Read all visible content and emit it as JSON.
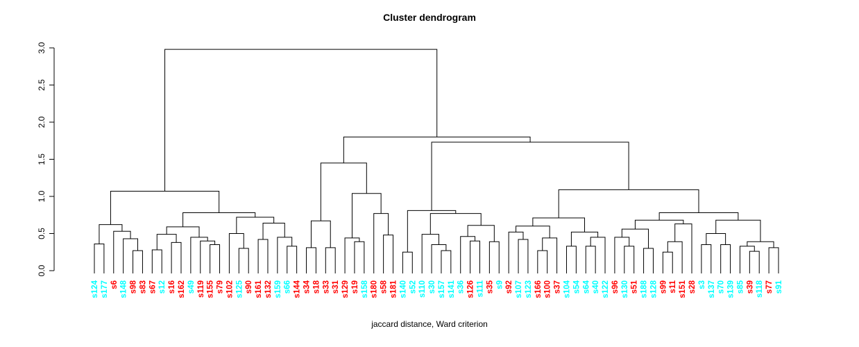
{
  "title": "Cluster dendrogram",
  "caption": "jaccard distance, Ward criterion",
  "chart_data": {
    "type": "dendrogram",
    "title": "Cluster dendrogram",
    "xlabel": "jaccard distance, Ward criterion",
    "ylabel": "",
    "ylim": [
      0.0,
      3.0
    ],
    "yticks": [
      "0.0",
      "0.5",
      "1.0",
      "1.5",
      "2.0",
      "2.5",
      "3.0"
    ],
    "grid": false,
    "line_color": "#000000",
    "label_colors": {
      "cyan": "#00ffff",
      "red": "#ff0000"
    },
    "leaves": [
      {
        "label": "s124",
        "color": "cyan"
      },
      {
        "label": "s177",
        "color": "cyan"
      },
      {
        "label": "s6",
        "color": "red"
      },
      {
        "label": "s148",
        "color": "cyan"
      },
      {
        "label": "s98",
        "color": "red"
      },
      {
        "label": "s83",
        "color": "red"
      },
      {
        "label": "s67",
        "color": "red"
      },
      {
        "label": "s12",
        "color": "cyan"
      },
      {
        "label": "s16",
        "color": "red"
      },
      {
        "label": "s162",
        "color": "red"
      },
      {
        "label": "s49",
        "color": "cyan"
      },
      {
        "label": "s119",
        "color": "red"
      },
      {
        "label": "s155",
        "color": "red"
      },
      {
        "label": "s79",
        "color": "red"
      },
      {
        "label": "s102",
        "color": "red"
      },
      {
        "label": "s125",
        "color": "cyan"
      },
      {
        "label": "s90",
        "color": "red"
      },
      {
        "label": "s161",
        "color": "red"
      },
      {
        "label": "s132",
        "color": "red"
      },
      {
        "label": "s159",
        "color": "cyan"
      },
      {
        "label": "s66",
        "color": "cyan"
      },
      {
        "label": "s144",
        "color": "red"
      },
      {
        "label": "s34",
        "color": "red"
      },
      {
        "label": "s18",
        "color": "red"
      },
      {
        "label": "s33",
        "color": "red"
      },
      {
        "label": "s31",
        "color": "red"
      },
      {
        "label": "s129",
        "color": "red"
      },
      {
        "label": "s19",
        "color": "red"
      },
      {
        "label": "s158",
        "color": "cyan"
      },
      {
        "label": "s180",
        "color": "red"
      },
      {
        "label": "s58",
        "color": "red"
      },
      {
        "label": "s181",
        "color": "red"
      },
      {
        "label": "s140",
        "color": "cyan"
      },
      {
        "label": "s52",
        "color": "cyan"
      },
      {
        "label": "s110",
        "color": "cyan"
      },
      {
        "label": "s30",
        "color": "cyan"
      },
      {
        "label": "s157",
        "color": "cyan"
      },
      {
        "label": "s141",
        "color": "cyan"
      },
      {
        "label": "s36",
        "color": "cyan"
      },
      {
        "label": "s126",
        "color": "red"
      },
      {
        "label": "s111",
        "color": "cyan"
      },
      {
        "label": "s35",
        "color": "red"
      },
      {
        "label": "s9",
        "color": "cyan"
      },
      {
        "label": "s92",
        "color": "red"
      },
      {
        "label": "s107",
        "color": "cyan"
      },
      {
        "label": "s123",
        "color": "cyan"
      },
      {
        "label": "s166",
        "color": "red"
      },
      {
        "label": "s100",
        "color": "red"
      },
      {
        "label": "s37",
        "color": "red"
      },
      {
        "label": "s104",
        "color": "cyan"
      },
      {
        "label": "s54",
        "color": "cyan"
      },
      {
        "label": "s64",
        "color": "cyan"
      },
      {
        "label": "s40",
        "color": "cyan"
      },
      {
        "label": "s122",
        "color": "cyan"
      },
      {
        "label": "s96",
        "color": "red"
      },
      {
        "label": "s130",
        "color": "cyan"
      },
      {
        "label": "s51",
        "color": "red"
      },
      {
        "label": "s188",
        "color": "cyan"
      },
      {
        "label": "s128",
        "color": "cyan"
      },
      {
        "label": "s99",
        "color": "red"
      },
      {
        "label": "s11",
        "color": "red"
      },
      {
        "label": "s151",
        "color": "red"
      },
      {
        "label": "s28",
        "color": "red"
      },
      {
        "label": "s3",
        "color": "cyan"
      },
      {
        "label": "s137",
        "color": "cyan"
      },
      {
        "label": "s70",
        "color": "cyan"
      },
      {
        "label": "s139",
        "color": "cyan"
      },
      {
        "label": "s85",
        "color": "cyan"
      },
      {
        "label": "s39",
        "color": "red"
      },
      {
        "label": "s118",
        "color": "cyan"
      },
      {
        "label": "s77",
        "color": "red"
      },
      {
        "label": "s91",
        "color": "cyan"
      }
    ],
    "tree": [
      2.98,
      [
        1.07,
        [
          0.62,
          [
            0.36,
            "s124",
            "s177"
          ],
          [
            0.53,
            "s6",
            [
              0.43,
              "s148",
              [
                0.27,
                "s98",
                "s83"
              ]
            ]
          ]
        ],
        [
          0.78,
          [
            0.59,
            [
              0.49,
              [
                0.28,
                "s67",
                "s12"
              ],
              [
                0.38,
                "s16",
                "s162"
              ]
            ],
            [
              0.45,
              "s49",
              [
                0.4,
                "s119",
                [
                  0.35,
                  "s155",
                  "s79"
                ]
              ]
            ]
          ],
          [
            0.72,
            [
              0.5,
              "s102",
              [
                0.3,
                "s125",
                "s90"
              ]
            ],
            [
              0.64,
              [
                0.42,
                "s161",
                "s132"
              ],
              [
                0.45,
                "s159",
                [
                  0.33,
                  "s66",
                  "s144"
                ]
              ]
            ]
          ]
        ]
      ],
      [
        1.8,
        [
          1.45,
          [
            0.67,
            [
              0.31,
              "s34",
              "s18"
            ],
            [
              0.31,
              "s33",
              "s31"
            ]
          ],
          [
            1.04,
            [
              0.44,
              "s129",
              [
                0.39,
                "s19",
                "s158"
              ]
            ],
            [
              0.77,
              "s180",
              [
                0.48,
                "s58",
                "s181"
              ]
            ]
          ]
        ],
        [
          1.73,
          [
            0.81,
            [
              0.25,
              "s140",
              "s52"
            ],
            [
              0.77,
              [
                0.49,
                "s110",
                [
                  0.35,
                  "s30",
                  [
                    0.27,
                    "s157",
                    "s141"
                  ]
                ]
              ],
              [
                0.61,
                [
                  0.46,
                  "s36",
                  [
                    0.4,
                    "s126",
                    "s111"
                  ]
                ],
                [
                  0.39,
                  "s35",
                  "s9"
                ]
              ]
            ]
          ],
          [
            1.09,
            [
              0.71,
              [
                0.6,
                [
                  0.52,
                  "s92",
                  [
                    0.42,
                    "s107",
                    "s123"
                  ]
                ],
                [
                  0.44,
                  [
                    0.27,
                    "s166",
                    "s100"
                  ],
                  "s37"
                ]
              ],
              [
                0.52,
                [
                  0.33,
                  "s104",
                  "s54"
                ],
                [
                  0.45,
                  [
                    0.33,
                    "s64",
                    "s40"
                  ],
                  "s122"
                ]
              ]
            ],
            [
              0.78,
              [
                0.68,
                [
                  0.56,
                  [
                    0.45,
                    "s96",
                    [
                      0.33,
                      "s130",
                      "s51"
                    ]
                  ],
                  [
                    0.3,
                    "s188",
                    "s128"
                  ]
                ],
                [
                  0.63,
                  [
                    0.39,
                    [
                      0.25,
                      "s99",
                      "s11"
                    ],
                    "s151"
                  ],
                  "s28"
                ]
              ],
              [
                0.68,
                [
                  0.5,
                  [
                    0.35,
                    "s3",
                    "s137"
                  ],
                  [
                    0.35,
                    "s70",
                    "s139"
                  ]
                ],
                [
                  0.39,
                  [
                    0.33,
                    "s85",
                    [
                      0.26,
                      "s39",
                      "s118"
                    ]
                  ],
                  [
                    0.31,
                    "s77",
                    "s91"
                  ]
                ]
              ]
            ]
          ]
        ]
      ]
    ]
  }
}
